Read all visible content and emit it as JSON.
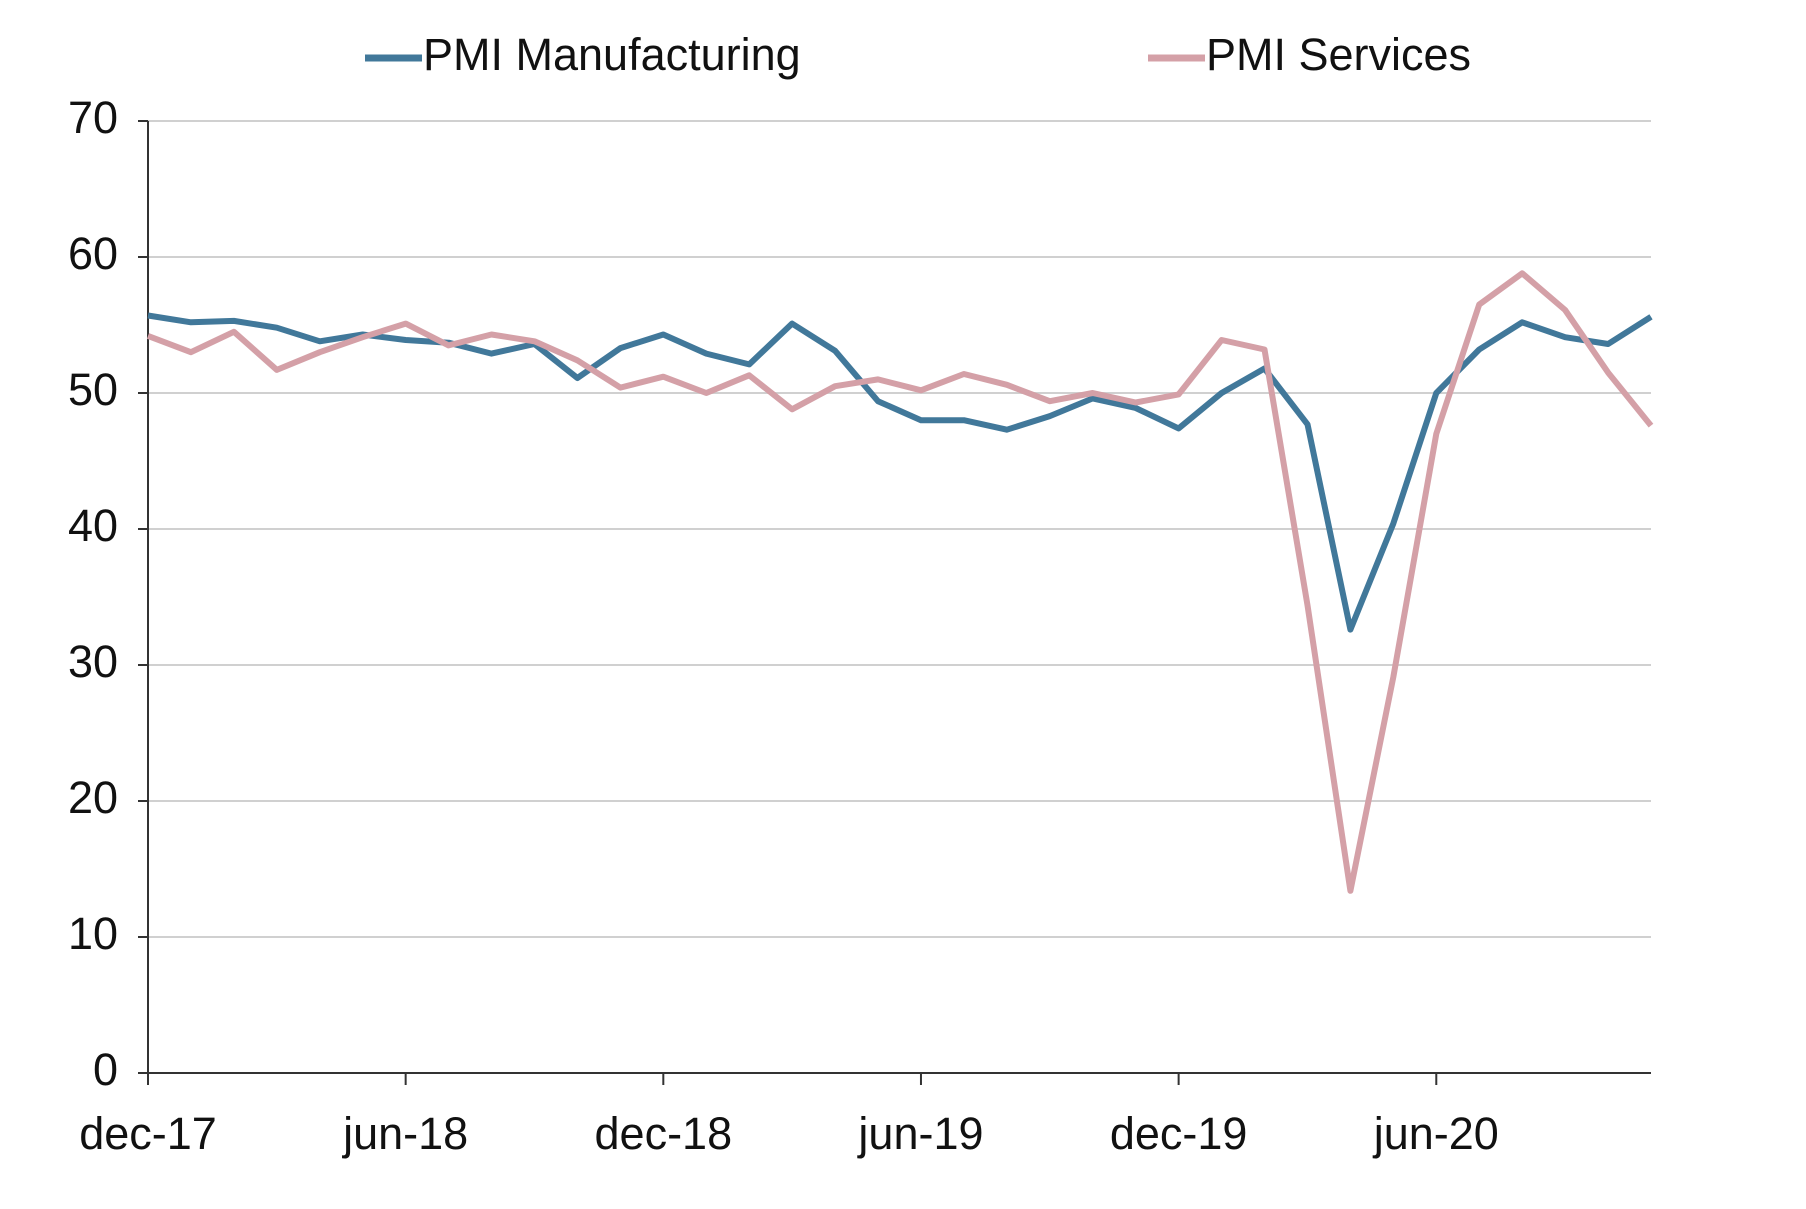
{
  "chart_data": {
    "type": "line",
    "categories": [
      "dec-17",
      null,
      null,
      null,
      null,
      null,
      "jun-18",
      null,
      null,
      null,
      null,
      null,
      "dec-18",
      null,
      null,
      null,
      null,
      null,
      "jun-19",
      null,
      null,
      null,
      null,
      null,
      "dec-19",
      null,
      null,
      null,
      null,
      null,
      "jun-20",
      null,
      null,
      null,
      null,
      null
    ],
    "series": [
      {
        "name": "PMI Manufacturing",
        "color": "#41789a",
        "values": [
          55.7,
          55.2,
          55.3,
          54.8,
          53.8,
          54.3,
          53.9,
          53.7,
          52.9,
          53.6,
          51.1,
          53.3,
          54.3,
          52.9,
          52.1,
          55.1,
          53.1,
          49.4,
          48.0,
          48.0,
          47.3,
          48.3,
          49.6,
          48.9,
          47.4,
          50.0,
          51.8,
          47.7,
          32.6,
          40.4,
          50.0,
          53.2,
          55.2,
          54.1,
          53.6,
          55.6
        ]
      },
      {
        "name": "PMI Services",
        "color": "#d4a0a7",
        "values": [
          54.2,
          53.0,
          54.5,
          51.7,
          53.0,
          54.1,
          55.1,
          53.5,
          54.3,
          53.8,
          52.4,
          50.4,
          51.2,
          50.0,
          51.3,
          48.8,
          50.5,
          51.0,
          50.2,
          51.4,
          50.6,
          49.4,
          50.0,
          49.3,
          49.9,
          53.9,
          53.2,
          34.4,
          13.4,
          29.1,
          47.0,
          56.5,
          58.8,
          56.1,
          51.5,
          47.6
        ]
      }
    ],
    "ylim": [
      0,
      70
    ],
    "yticks": [
      0,
      10,
      20,
      30,
      40,
      50,
      60,
      70
    ],
    "grid": true,
    "legend": "top"
  }
}
